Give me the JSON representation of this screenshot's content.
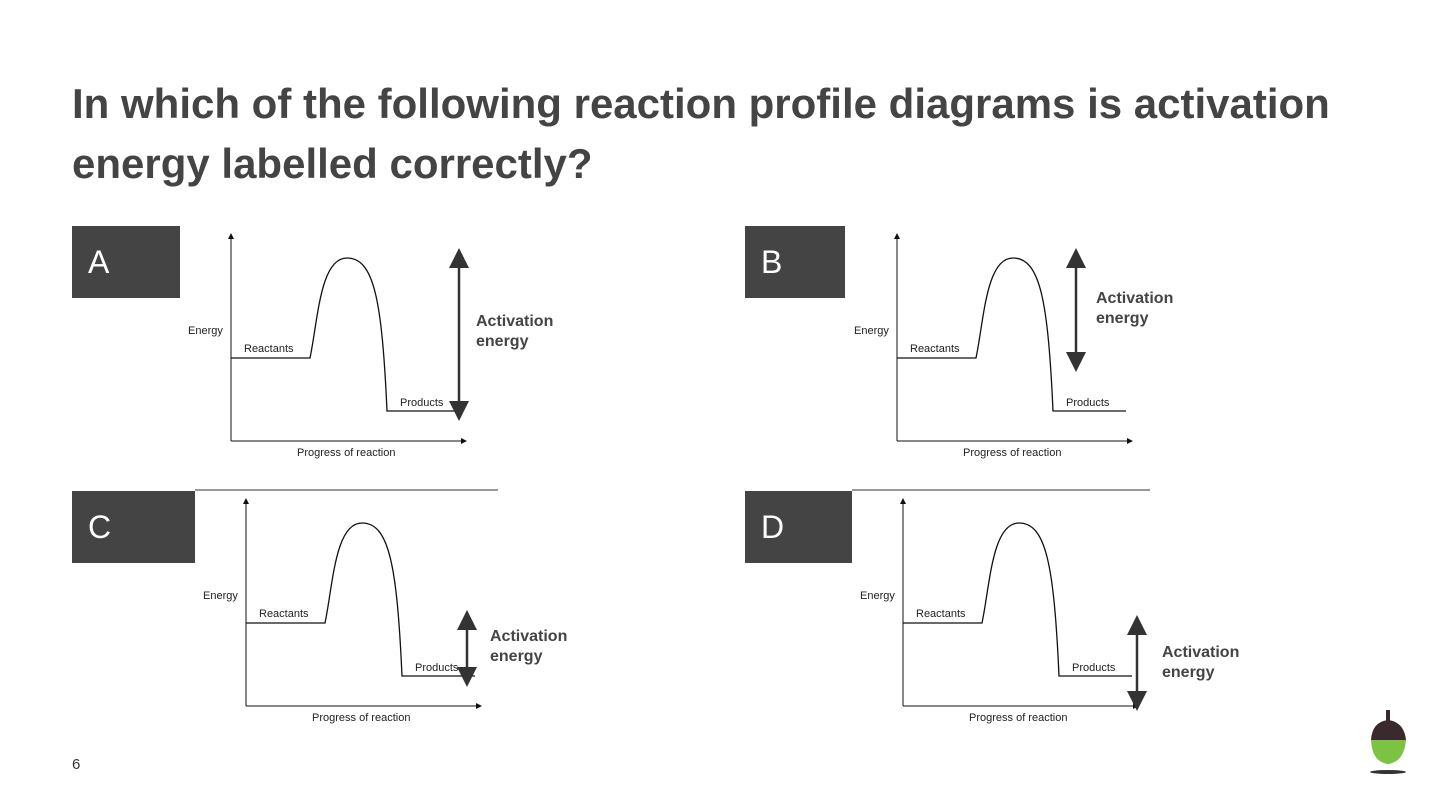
{
  "title": "In which of the following reaction profile diagrams is activation energy labelled correctly?",
  "options": [
    {
      "label": "A",
      "energy_label": "Energy",
      "reactants": "Reactants",
      "products": "Products",
      "x_label": "Progress of reaction",
      "annotation": "Activation energy"
    },
    {
      "label": "B",
      "energy_label": "Energy",
      "reactants": "Reactants",
      "products": "Products",
      "x_label": "Progress of reaction",
      "annotation": "Activation energy"
    },
    {
      "label": "C",
      "energy_label": "Energy",
      "reactants": "Reactants",
      "products": "Products",
      "x_label": "Progress of reaction",
      "annotation": "Activation energy"
    },
    {
      "label": "D",
      "energy_label": "Energy",
      "reactants": "Reactants",
      "products": "Products",
      "x_label": "Progress of reaction",
      "annotation": "Activation energy"
    }
  ],
  "page_number": "6"
}
